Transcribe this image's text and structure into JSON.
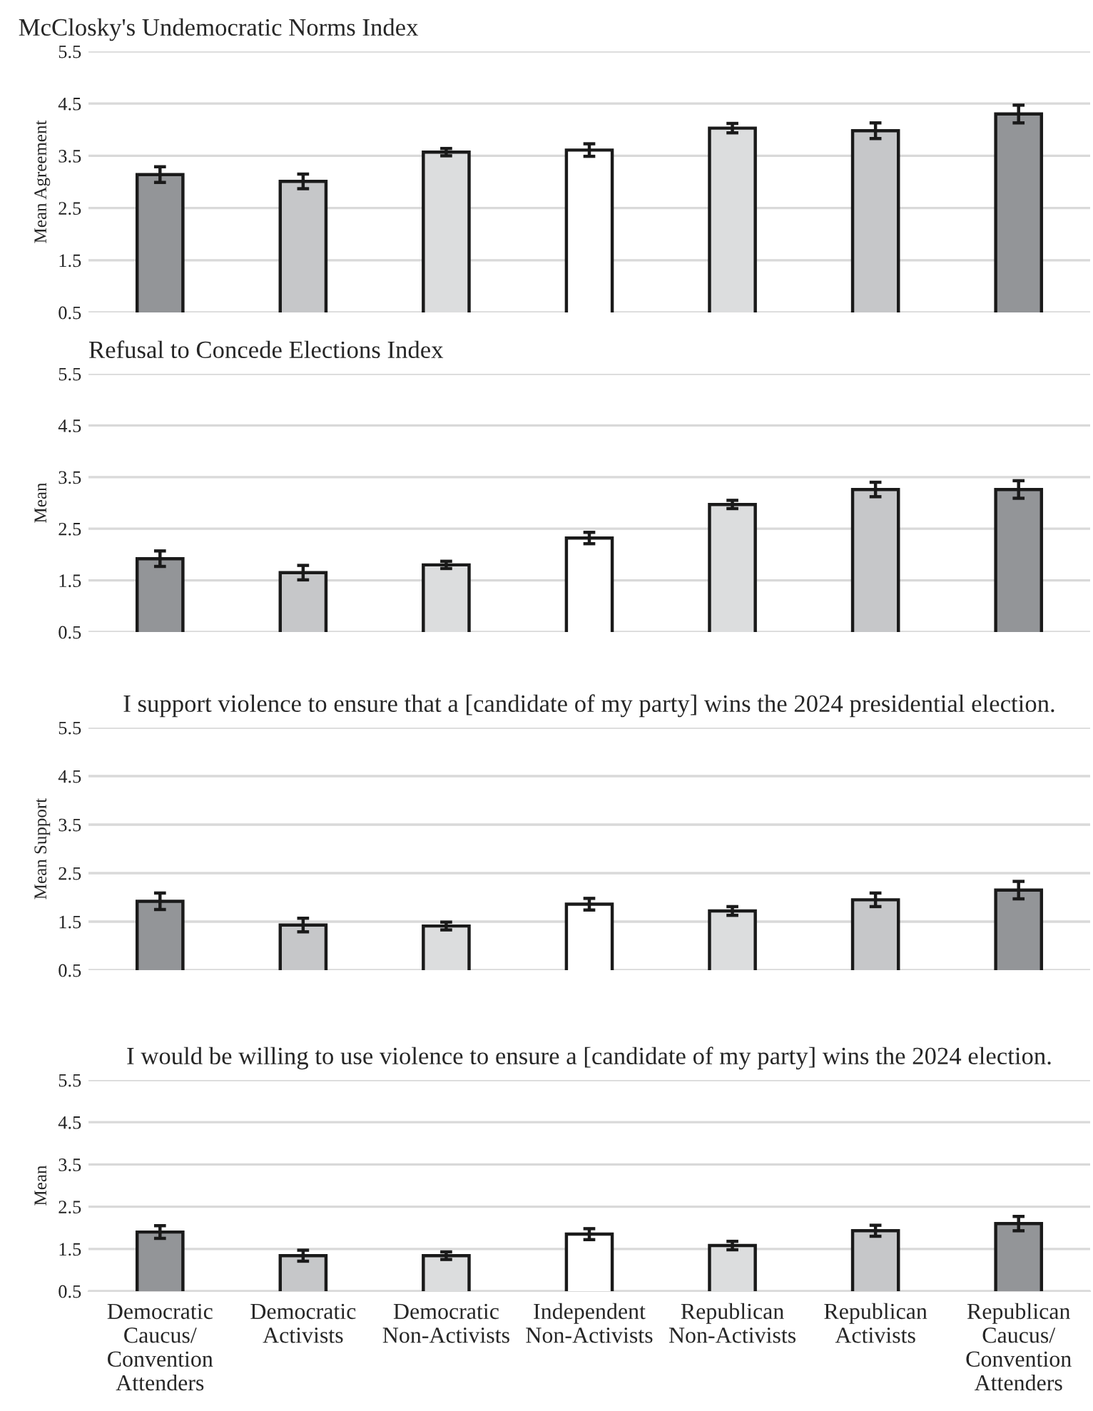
{
  "chart_data": [
    {
      "type": "bar",
      "title": "McClosky's Undemocratic Norms Index",
      "ylabel": "Mean Agreement",
      "categories": [
        null,
        null,
        null,
        null,
        null,
        null,
        null
      ],
      "values": [
        3.14,
        3.01,
        3.57,
        3.61,
        4.03,
        3.98,
        4.3
      ],
      "errors": [
        0.15,
        0.14,
        0.07,
        0.12,
        0.09,
        0.15,
        0.17
      ],
      "colors": [
        "#939598",
        "#c6c7c9",
        "#dcddde",
        "#ffffff",
        "#dcddde",
        "#c6c7c9",
        "#939598"
      ],
      "ylim": [
        0.5,
        5.5
      ],
      "yticks": [
        0.5,
        1.5,
        2.5,
        3.5,
        4.5,
        5.5
      ],
      "grid": "y",
      "tick_labels": "y"
    },
    {
      "type": "bar",
      "title": "Refusal to Concede Elections Index",
      "ylabel": "Mean",
      "categories": [
        null,
        null,
        null,
        null,
        null,
        null,
        null
      ],
      "values": [
        1.92,
        1.65,
        1.8,
        2.32,
        2.97,
        3.26,
        3.26
      ],
      "errors": [
        0.15,
        0.14,
        0.07,
        0.11,
        0.08,
        0.14,
        0.17
      ],
      "colors": [
        "#939598",
        "#c6c7c9",
        "#dcddde",
        "#ffffff",
        "#dcddde",
        "#c6c7c9",
        "#939598"
      ],
      "ylim": [
        0.5,
        5.5
      ],
      "yticks": [
        0.5,
        1.5,
        2.5,
        3.5,
        4.5,
        5.5
      ],
      "grid": "y",
      "tick_labels": "y"
    },
    {
      "type": "bar",
      "title": "I support violence to ensure that a [candidate of my party] wins the 2024 presidential election.",
      "ylabel": "Mean Support",
      "categories": [
        null,
        null,
        null,
        null,
        null,
        null,
        null
      ],
      "values": [
        1.92,
        1.43,
        1.41,
        1.86,
        1.72,
        1.95,
        2.15
      ],
      "errors": [
        0.17,
        0.14,
        0.08,
        0.12,
        0.09,
        0.14,
        0.18
      ],
      "colors": [
        "#939598",
        "#c6c7c9",
        "#dcddde",
        "#ffffff",
        "#dcddde",
        "#c6c7c9",
        "#939598"
      ],
      "ylim": [
        0.5,
        5.5
      ],
      "yticks": [
        0.5,
        1.5,
        2.5,
        3.5,
        4.5,
        5.5
      ],
      "grid": "y",
      "tick_labels": "y"
    },
    {
      "type": "bar",
      "title": "I would be willing to use violence to ensure a [candidate of my party] wins the 2024 election.",
      "ylabel": "Mean",
      "categories": [
        "Democratic\nCaucus/\nConvention\nAttenders",
        "Democratic\nActivists",
        "Democratic\nNon-Activists",
        "Independent\nNon-Activists",
        "Republican\nNon-Activists",
        "Republican\nActivists",
        "Republican\nCaucus/\nConvention\nAttenders"
      ],
      "values": [
        1.9,
        1.34,
        1.34,
        1.85,
        1.58,
        1.93,
        2.1
      ],
      "errors": [
        0.15,
        0.13,
        0.09,
        0.13,
        0.1,
        0.13,
        0.17
      ],
      "colors": [
        "#939598",
        "#c6c7c9",
        "#dcddde",
        "#ffffff",
        "#dcddde",
        "#c6c7c9",
        "#939598"
      ],
      "ylim": [
        0.5,
        5.5
      ],
      "yticks": [
        0.5,
        1.5,
        2.5,
        3.5,
        4.5,
        5.5
      ],
      "grid": "y"
    }
  ]
}
